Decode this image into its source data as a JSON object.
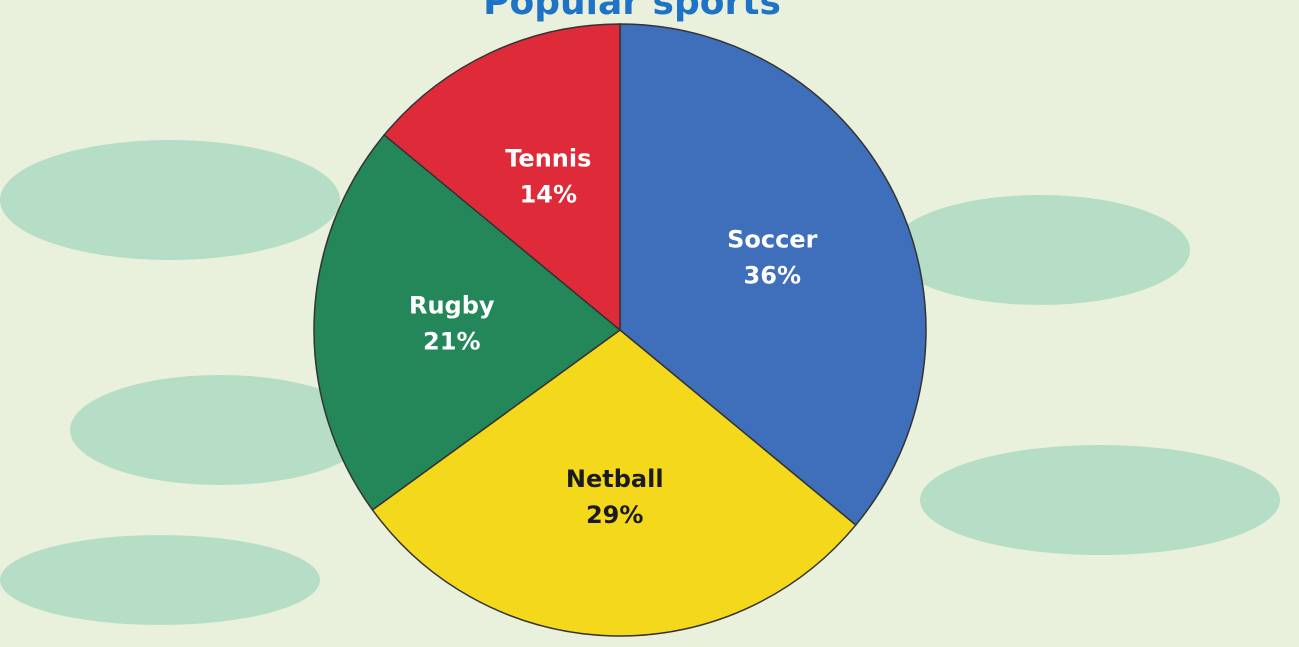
{
  "chart_data": {
    "type": "pie",
    "title": "Popular sports",
    "categories": [
      "Soccer",
      "Netball",
      "Rugby",
      "Tennis"
    ],
    "values": [
      36,
      29,
      21,
      14
    ],
    "value_labels": [
      "36%",
      "29%",
      "21%",
      "14%"
    ],
    "colors": [
      "#3f6fba",
      "#f4d81c",
      "#23875a",
      "#df2a3a"
    ],
    "label_colors": [
      "#ffffff",
      "#1b1b1b",
      "#ffffff",
      "#ffffff"
    ]
  }
}
